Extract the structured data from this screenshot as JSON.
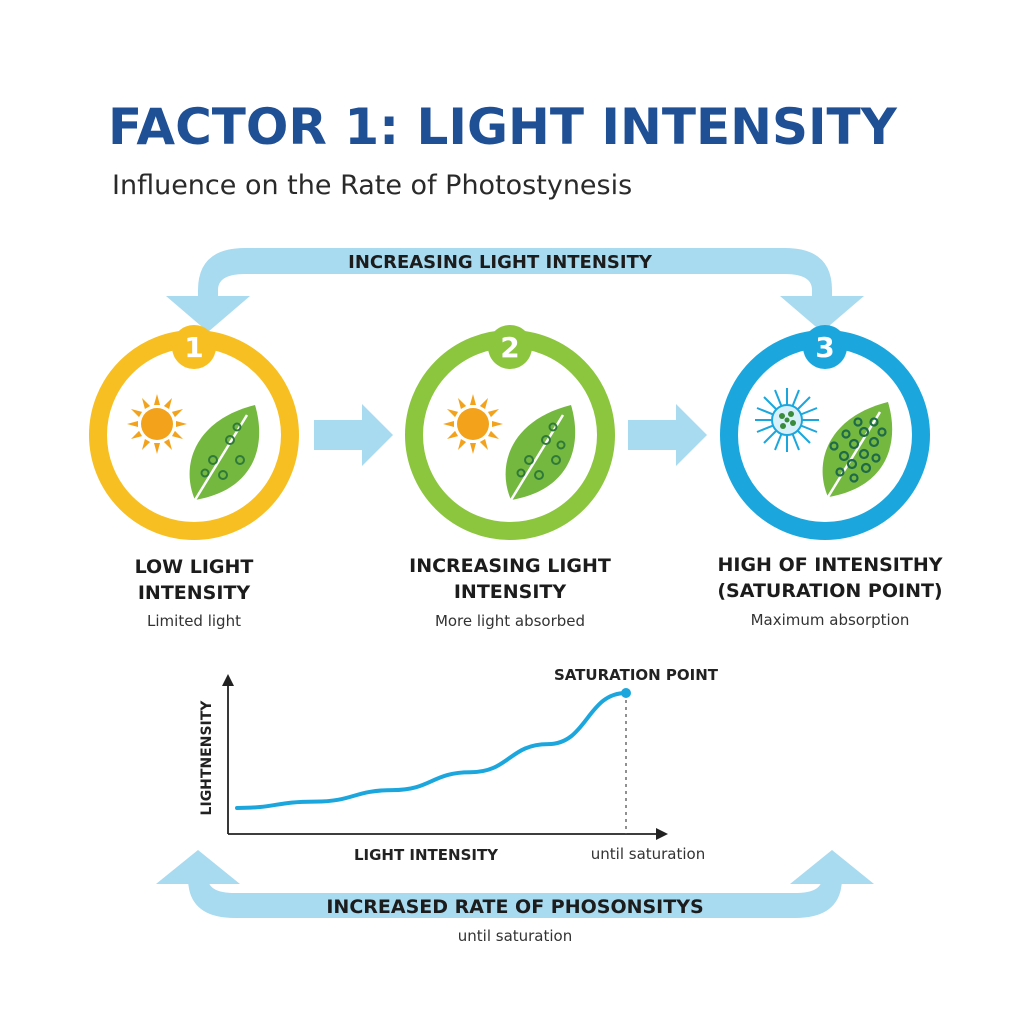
{
  "header": {
    "title": "FACTOR 1: LIGHT INTENSITY",
    "subtitle": "Influence on the Rate of Photostynesis"
  },
  "top_arrow": {
    "label": "INCREASING LIGHT INTENSITY"
  },
  "stages": [
    {
      "number": "1",
      "title_line1": "LOW LIGHT",
      "title_line2": "INTENSITY",
      "caption": "Limited light",
      "color": "#f7bf22"
    },
    {
      "number": "2",
      "title_line1": "INCREASING LIGHT",
      "title_line2": "INTENSITY",
      "caption": "More light absorbed",
      "color": "#8cc63f"
    },
    {
      "number": "3",
      "title_line1": "HIGH OF INTENSITHY",
      "title_line2": "(SATURATION POINT)",
      "caption": "Maximum absorption",
      "color": "#1ba7dd"
    }
  ],
  "chart_data": {
    "type": "line",
    "title": "",
    "xlabel": "LIGHT INTENSITY",
    "ylabel": "LIGHTNENSITY",
    "annotation_point": "SATURATION POINT",
    "annotation_axis": "until saturation",
    "x": [
      0,
      0.2,
      0.4,
      0.6,
      0.8,
      1.0
    ],
    "series": [
      {
        "values": [
          0.1,
          0.15,
          0.24,
          0.38,
          0.6,
          1.0
        ]
      }
    ],
    "xlim": [
      0,
      1
    ],
    "ylim": [
      0,
      1
    ],
    "grid": false,
    "line_color": "#1ba7dd"
  },
  "bottom_arrow": {
    "label": "INCREASED RATE OF PHOSONSITYS",
    "sub": "until saturation"
  },
  "colors": {
    "title": "#1f4f94",
    "arrow": "#a8daf0",
    "leaf": "#74b83f",
    "sun": "#f3a21c"
  }
}
